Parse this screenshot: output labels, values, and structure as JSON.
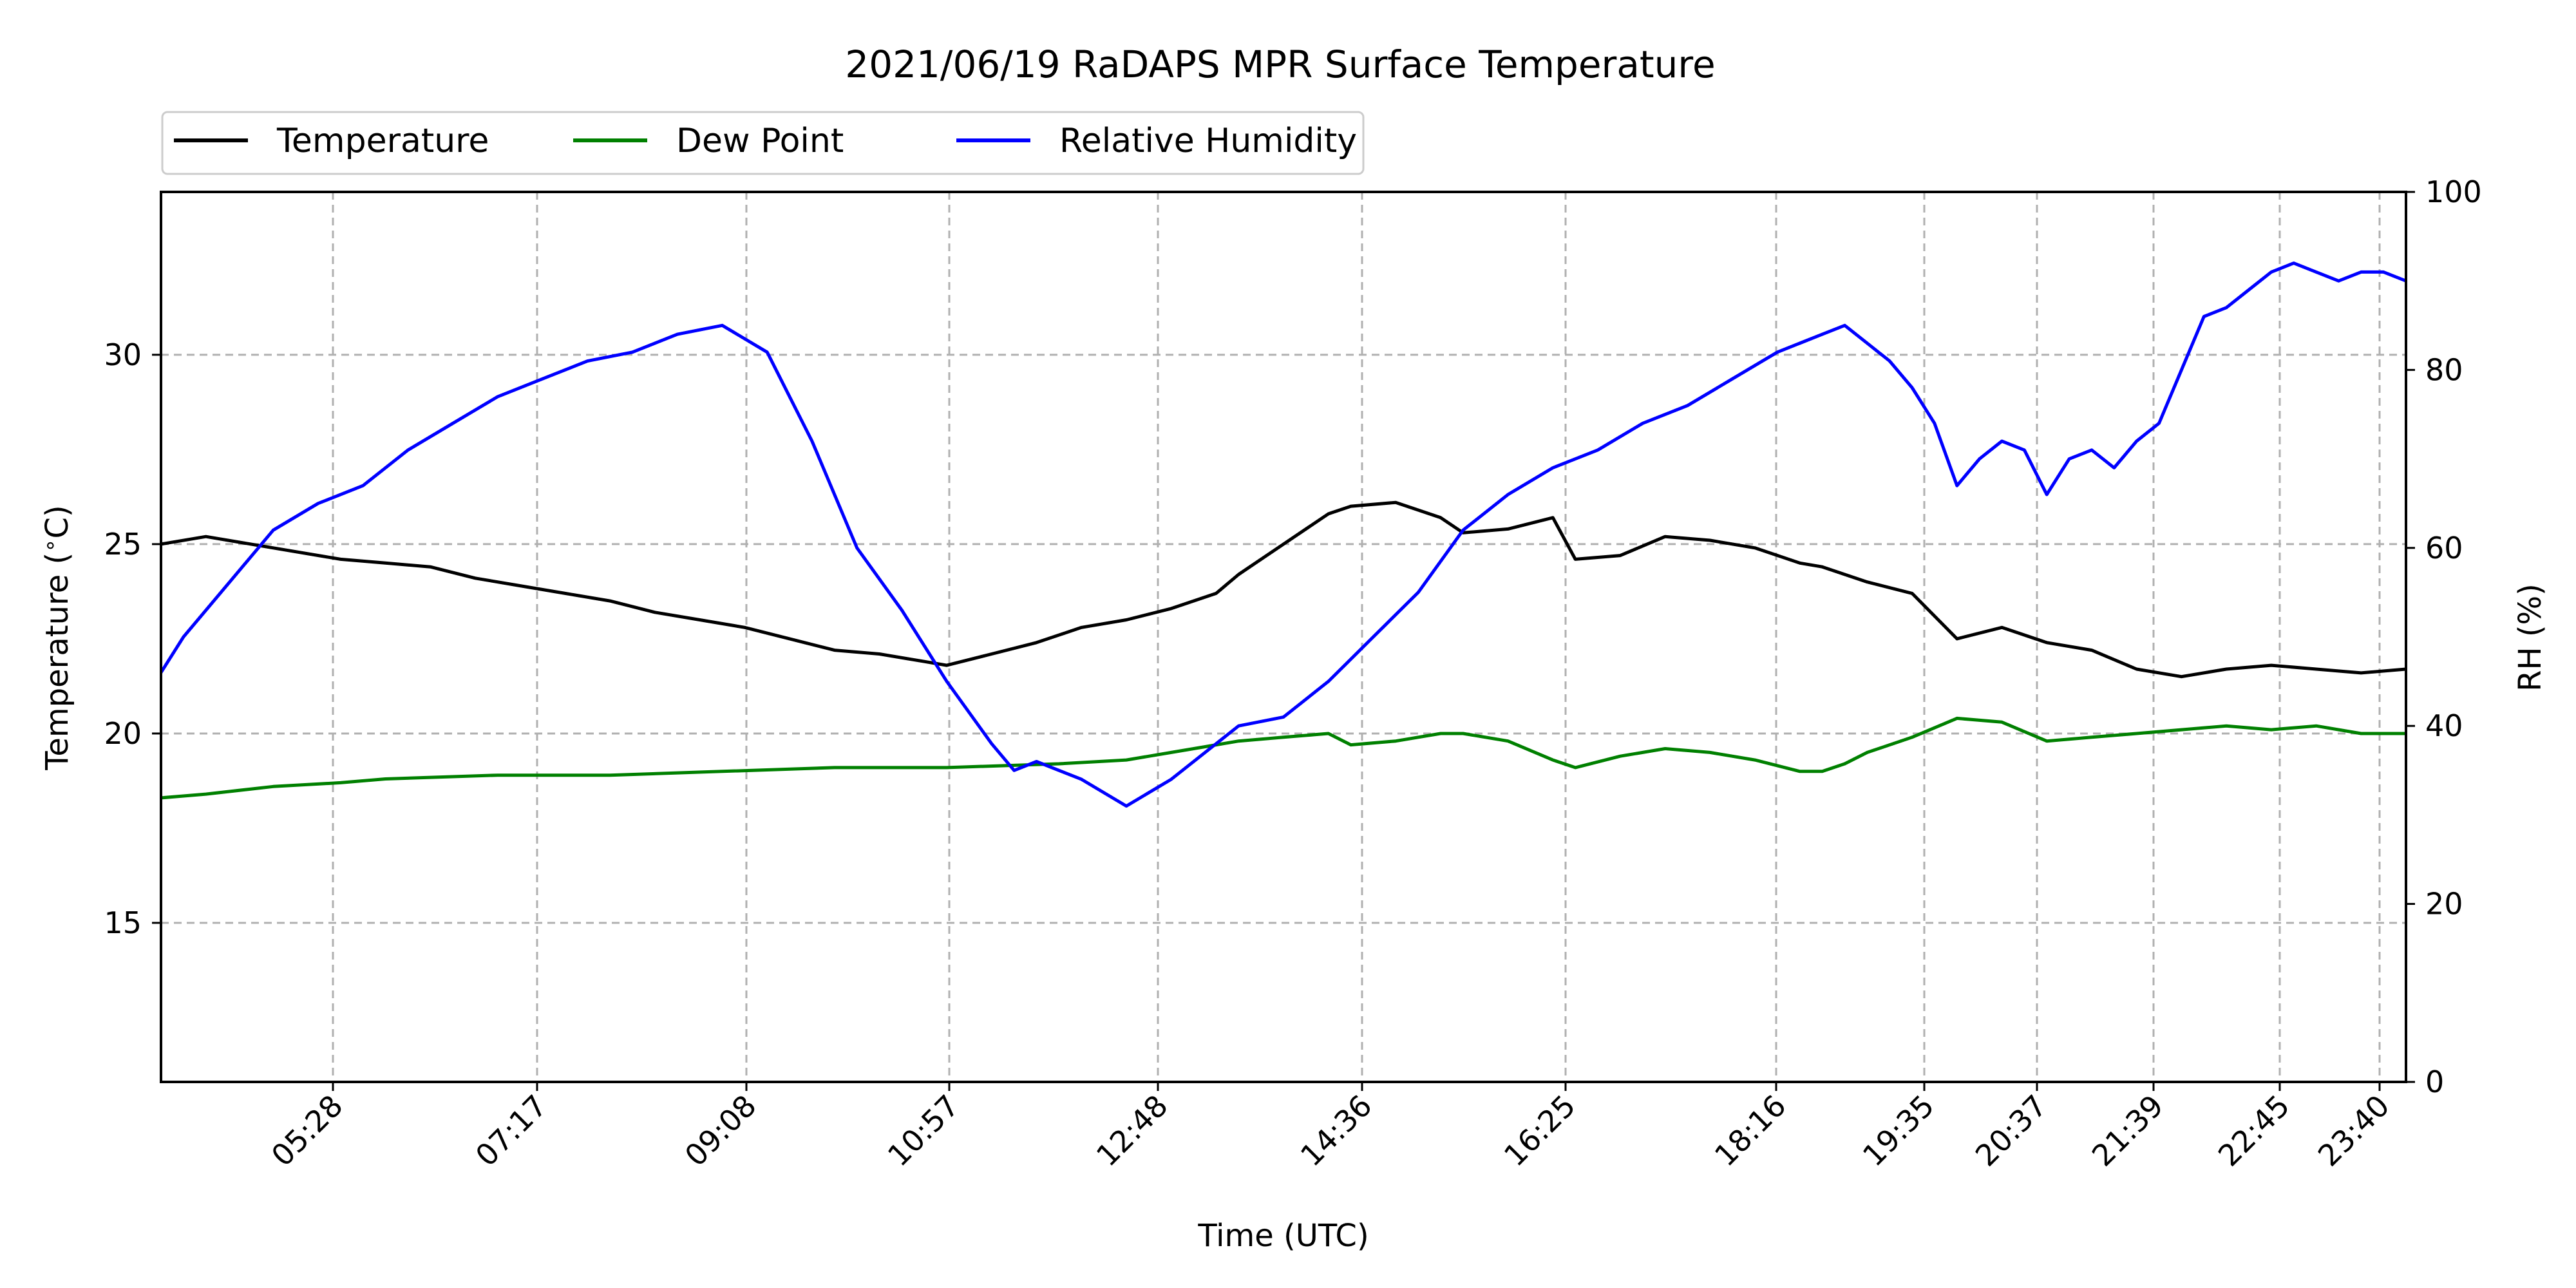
{
  "chart_data": {
    "type": "line",
    "title": "2021/06/19 RaDAPS MPR Surface Temperature",
    "xlabel": "Time (UTC)",
    "ylabel": "Temperature ($^\\circ$C)",
    "ylabel_display": "Temperature ($^\\circ$C)",
    "y2label": "RH (%)",
    "ylim": [
      10.8,
      34.3
    ],
    "y2lim": [
      0,
      100
    ],
    "yticks": [
      15,
      20,
      25,
      30
    ],
    "y2ticks": [
      0,
      20,
      40,
      60,
      80,
      100
    ],
    "x_tick_labels": [
      "05:28",
      "07:17",
      "09:08",
      "10:57",
      "12:48",
      "14:36",
      "16:25",
      "18:16",
      "19:35",
      "20:37",
      "21:39",
      "22:45",
      "23:40"
    ],
    "grid": true,
    "legend_position": "top-left, above plot",
    "series": [
      {
        "name": "Temperature",
        "axis": "left",
        "color": "#000000",
        "x_index": [
          0,
          0.02,
          0.05,
          0.08,
          0.1,
          0.12,
          0.14,
          0.16,
          0.18,
          0.2,
          0.22,
          0.24,
          0.26,
          0.28,
          0.3,
          0.32,
          0.34,
          0.35,
          0.37,
          0.39,
          0.41,
          0.43,
          0.45,
          0.47,
          0.48,
          0.5,
          0.52,
          0.53,
          0.55,
          0.57,
          0.58,
          0.6,
          0.62,
          0.63,
          0.65,
          0.67,
          0.69,
          0.71,
          0.73,
          0.74,
          0.75,
          0.76,
          0.78,
          0.8,
          0.82,
          0.84,
          0.86,
          0.88,
          0.9,
          0.92,
          0.94,
          0.96,
          0.98,
          1.0
        ],
        "values": [
          25.0,
          25.2,
          24.9,
          24.6,
          24.5,
          24.4,
          24.1,
          23.9,
          23.7,
          23.5,
          23.2,
          23.0,
          22.8,
          22.5,
          22.2,
          22.1,
          21.9,
          21.8,
          22.1,
          22.4,
          22.8,
          23.0,
          23.3,
          23.7,
          24.2,
          25.0,
          25.8,
          26.0,
          26.1,
          25.7,
          25.3,
          25.4,
          25.7,
          24.6,
          24.7,
          25.2,
          25.1,
          24.9,
          24.5,
          24.4,
          24.2,
          24.0,
          23.7,
          22.5,
          22.8,
          22.4,
          22.2,
          21.7,
          21.5,
          21.7,
          21.8,
          21.7,
          21.6,
          21.7
        ]
      },
      {
        "name": "Dew Point",
        "axis": "left",
        "color": "#008000",
        "x_index": [
          0,
          0.02,
          0.05,
          0.08,
          0.1,
          0.15,
          0.2,
          0.25,
          0.3,
          0.35,
          0.4,
          0.43,
          0.45,
          0.47,
          0.48,
          0.5,
          0.52,
          0.53,
          0.55,
          0.57,
          0.58,
          0.6,
          0.62,
          0.63,
          0.65,
          0.67,
          0.69,
          0.71,
          0.73,
          0.74,
          0.75,
          0.76,
          0.78,
          0.8,
          0.82,
          0.84,
          0.86,
          0.88,
          0.9,
          0.92,
          0.94,
          0.96,
          0.98,
          1.0
        ],
        "values": [
          18.3,
          18.4,
          18.6,
          18.7,
          18.8,
          18.9,
          18.9,
          19.0,
          19.1,
          19.1,
          19.2,
          19.3,
          19.5,
          19.7,
          19.8,
          19.9,
          20.0,
          19.7,
          19.8,
          20.0,
          20.0,
          19.8,
          19.3,
          19.1,
          19.4,
          19.6,
          19.5,
          19.3,
          19.0,
          19.0,
          19.2,
          19.5,
          19.9,
          20.4,
          20.3,
          19.8,
          19.9,
          20.0,
          20.1,
          20.2,
          20.1,
          20.2,
          20.0,
          20.0
        ]
      },
      {
        "name": "Relative Humidity",
        "axis": "right",
        "color": "#0000ff",
        "x_index": [
          0,
          0.01,
          0.03,
          0.05,
          0.07,
          0.09,
          0.11,
          0.13,
          0.15,
          0.17,
          0.19,
          0.21,
          0.23,
          0.25,
          0.27,
          0.29,
          0.31,
          0.33,
          0.35,
          0.37,
          0.38,
          0.39,
          0.41,
          0.43,
          0.45,
          0.47,
          0.48,
          0.5,
          0.52,
          0.54,
          0.56,
          0.58,
          0.6,
          0.62,
          0.64,
          0.66,
          0.68,
          0.7,
          0.72,
          0.74,
          0.75,
          0.76,
          0.77,
          0.78,
          0.79,
          0.8,
          0.81,
          0.82,
          0.83,
          0.84,
          0.85,
          0.86,
          0.87,
          0.88,
          0.89,
          0.9,
          0.91,
          0.92,
          0.93,
          0.94,
          0.95,
          0.96,
          0.97,
          0.98,
          0.99,
          1.0
        ],
        "values": [
          46,
          50,
          56,
          62,
          65,
          67,
          71,
          74,
          77,
          79,
          81,
          82,
          84,
          85,
          82,
          72,
          60,
          53,
          45,
          38,
          35,
          36,
          34,
          31,
          34,
          38,
          40,
          41,
          45,
          50,
          55,
          62,
          66,
          69,
          71,
          74,
          76,
          79,
          82,
          84,
          85,
          83,
          81,
          78,
          74,
          67,
          70,
          72,
          71,
          66,
          70,
          71,
          69,
          72,
          74,
          80,
          86,
          87,
          89,
          91,
          92,
          91,
          90,
          91,
          91,
          90
        ]
      }
    ]
  }
}
